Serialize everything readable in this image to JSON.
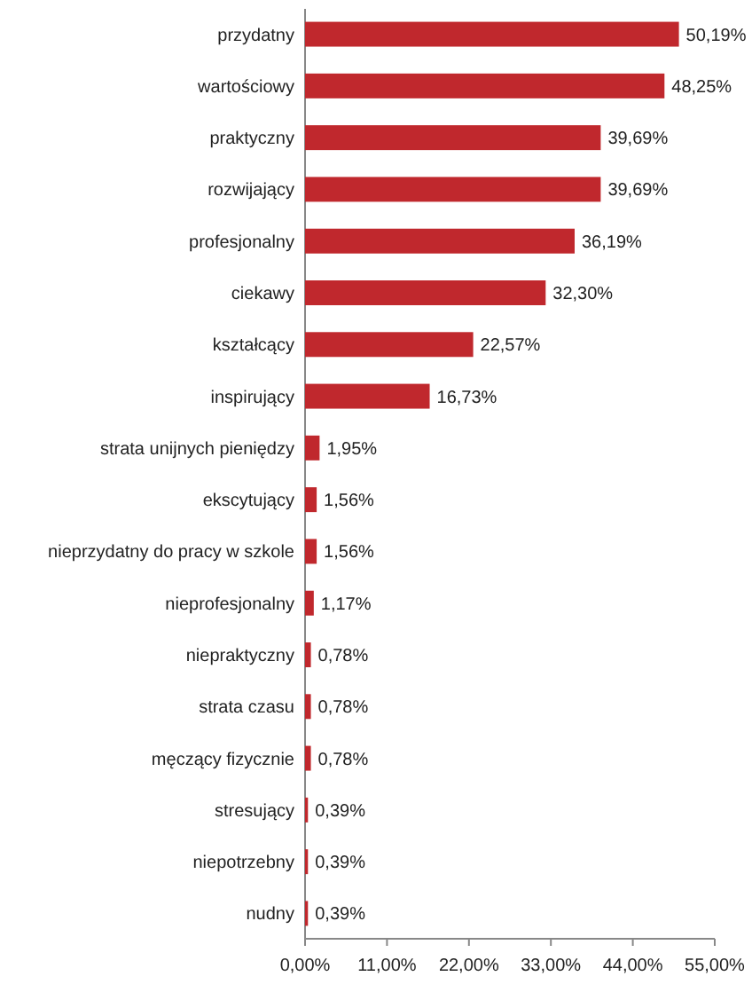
{
  "chart_data": {
    "type": "bar",
    "orientation": "horizontal",
    "categories": [
      "przydatny",
      "wartościowy",
      "praktyczny",
      "rozwijający",
      "profesjonalny",
      "ciekawy",
      "kształcący",
      "inspirujący",
      "strata unijnych pieniędzy",
      "ekscytujący",
      "nieprzydatny do pracy w szkole",
      "nieprofesjonalny",
      "niepraktyczny",
      "strata czasu",
      "męczący fizycznie",
      "stresujący",
      "niepotrzebny",
      "nudny"
    ],
    "values": [
      50.19,
      48.25,
      39.69,
      39.69,
      36.19,
      32.3,
      22.57,
      16.73,
      1.95,
      1.56,
      1.56,
      1.17,
      0.78,
      0.78,
      0.78,
      0.39,
      0.39,
      0.39
    ],
    "value_labels": [
      "50,19%",
      "48,25%",
      "39,69%",
      "39,69%",
      "36,19%",
      "32,30%",
      "22,57%",
      "16,73%",
      "1,95%",
      "1,56%",
      "1,56%",
      "1,17%",
      "0,78%",
      "0,78%",
      "0,78%",
      "0,39%",
      "0,39%",
      "0,39%"
    ],
    "color": "#c0282d",
    "xlim": [
      0,
      55
    ],
    "xticks": [
      {
        "value": 0,
        "label": "0,00%"
      },
      {
        "value": 11,
        "label": "11,00%"
      },
      {
        "value": 22,
        "label": "22,00%"
      },
      {
        "value": 33,
        "label": "33,00%"
      },
      {
        "value": 44,
        "label": "44,00%"
      },
      {
        "value": 55,
        "label": "55,00%"
      }
    ]
  }
}
